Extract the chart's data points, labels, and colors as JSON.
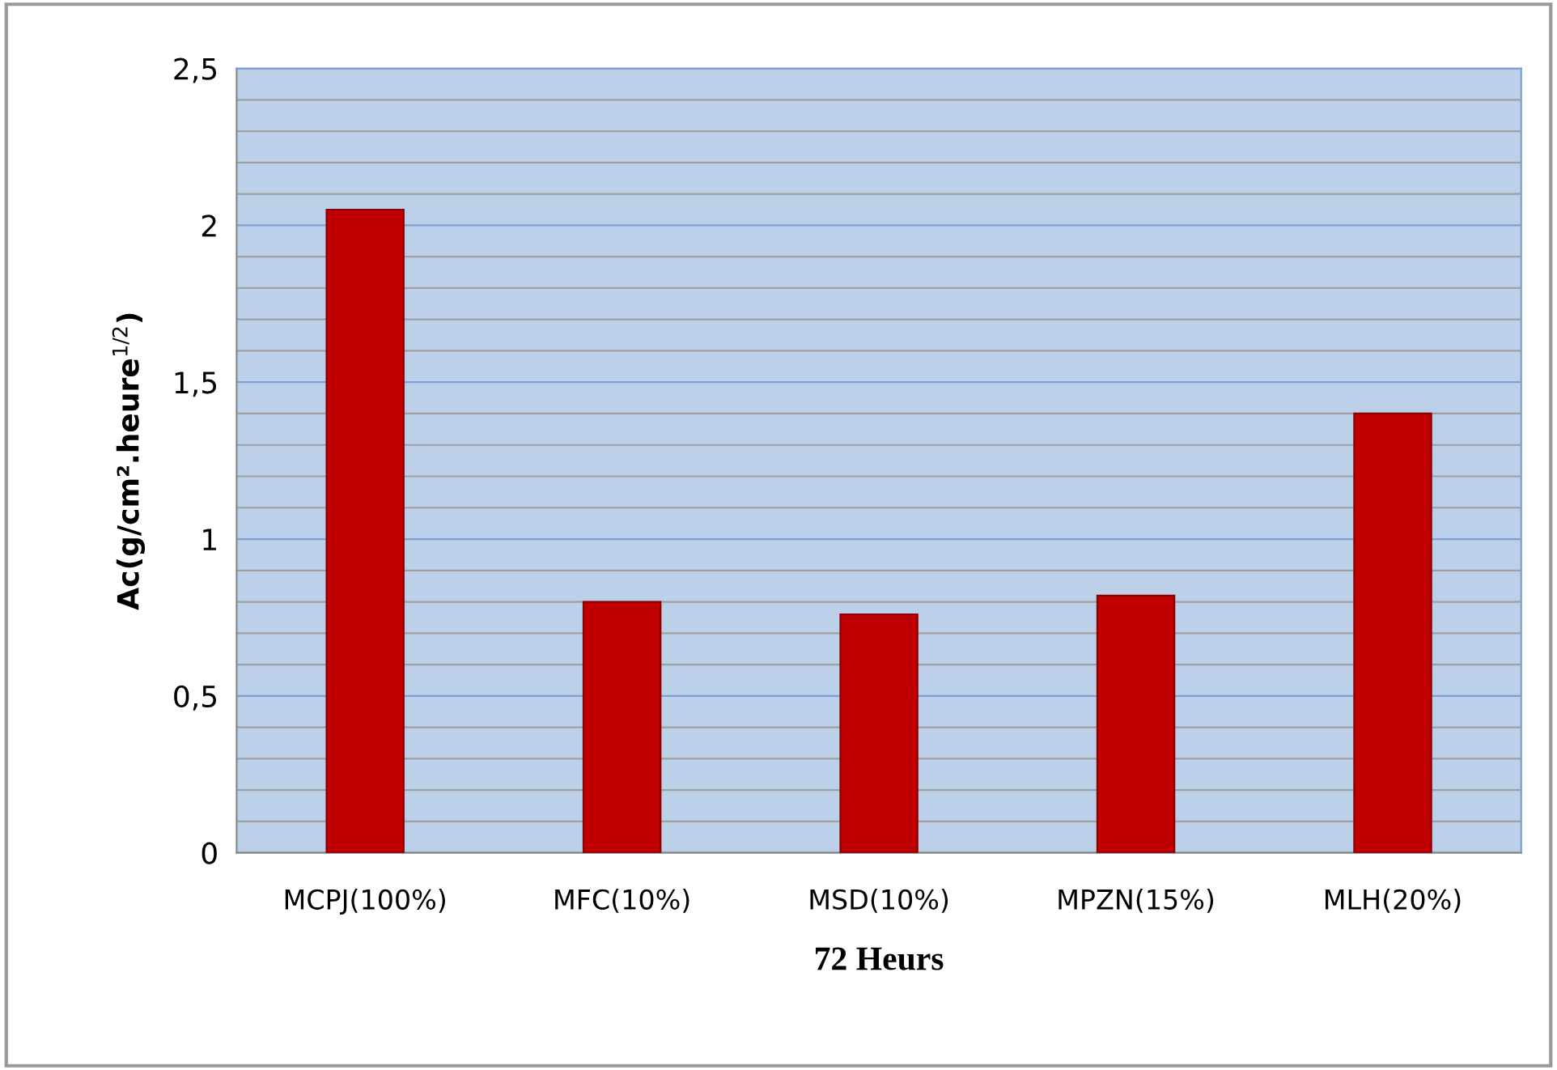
{
  "chart_data": {
    "type": "bar",
    "xlabel": "72 Heurs",
    "ylabel": "Ac(g/cm².heure$^{1/2}$)",
    "categories": [
      "MCPJ(100%)",
      "MFC(10%)",
      "MSD(10%)",
      "MPZN(15%)",
      "MLH(20%)"
    ],
    "values": [
      2.05,
      0.8,
      0.76,
      0.82,
      1.4
    ],
    "color": "#c00000",
    "ylim": [
      0,
      2.5
    ],
    "yticks": [
      {
        "value": 0,
        "label": "0"
      },
      {
        "value": 0.1,
        "label": null
      },
      {
        "value": 0.2,
        "label": null
      },
      {
        "value": 0.3,
        "label": null
      },
      {
        "value": 0.4,
        "label": null
      },
      {
        "value": 0.5,
        "label": "0,5"
      },
      {
        "value": 0.6,
        "label": null
      },
      {
        "value": 0.7,
        "label": null
      },
      {
        "value": 0.8,
        "label": null
      },
      {
        "value": 0.9,
        "label": null
      },
      {
        "value": 1,
        "label": "1"
      },
      {
        "value": 1.1,
        "label": null
      },
      {
        "value": 1.2,
        "label": null
      },
      {
        "value": 1.3,
        "label": null
      },
      {
        "value": 1.4,
        "label": null
      },
      {
        "value": 1.5,
        "label": "1,5"
      },
      {
        "value": 1.6,
        "label": null
      },
      {
        "value": 1.7,
        "label": null
      },
      {
        "value": 1.8,
        "label": null
      },
      {
        "value": 1.9,
        "label": null
      },
      {
        "value": 2,
        "label": "2"
      },
      {
        "value": 2.1,
        "label": null
      },
      {
        "value": 2.2,
        "label": null
      },
      {
        "value": 2.3,
        "label": null
      },
      {
        "value": 2.4,
        "label": null
      },
      {
        "value": 2.5,
        "label": "2,5"
      }
    ],
    "grid": "y",
    "legend": false
  }
}
